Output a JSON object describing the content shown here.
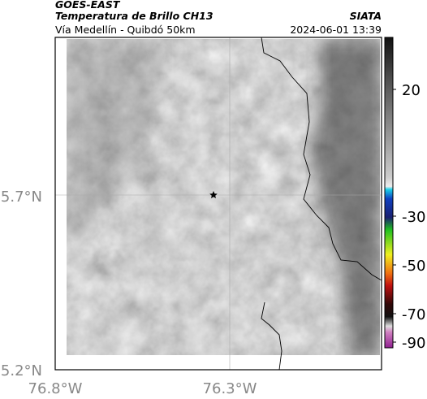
{
  "header": {
    "title": "GOES-EAST",
    "subtitle": "Temperatura de Brillo CH13",
    "source": "SIATA",
    "route": "Vía Medellín - Quibdó 50km",
    "datetime": "2024-06-01 13:39"
  },
  "latitude_ticks": [
    "5.7°N",
    "5.2°N"
  ],
  "longitude_ticks": [
    "76.8°W",
    "76.3°W"
  ],
  "colorbar_ticks": [
    "20",
    "-30",
    "-50",
    "-70",
    "-90"
  ]
}
